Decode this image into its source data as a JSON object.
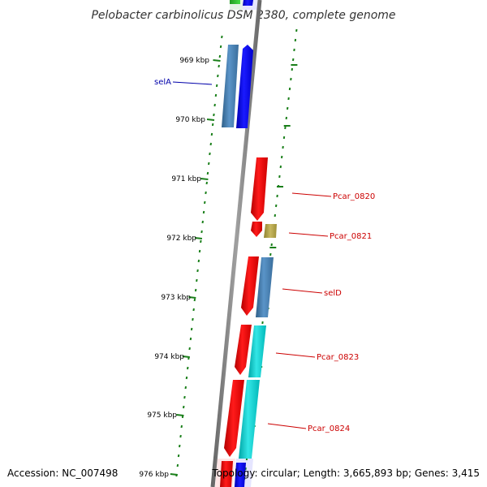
{
  "title": "Pelobacter carbinolicus DSM 2380, complete genome",
  "footer": {
    "accession": "Accession: NC_007498",
    "topology": "Topology: circular; Length: 3,665,893 bp; Genes: 3,415"
  },
  "colors": {
    "backbone": "#808080",
    "ruler_ticks": "#1a7f1a",
    "label_red": "#cc0000",
    "label_blue": "#0000aa",
    "gene_red": "#ff0000",
    "gene_blue": "#0000ff",
    "gene_steelblue": "#4682b4",
    "gene_cyan": "#00cccc",
    "gene_khaki": "#b5a642",
    "gene_green": "#33cc33"
  },
  "ruler": {
    "unit": "kbp",
    "ticks": [
      "969 kbp",
      "970 kbp",
      "971 kbp",
      "972 kbp",
      "973 kbp",
      "974 kbp",
      "975 kbp",
      "976 kbp"
    ]
  },
  "gene_labels": [
    {
      "text": "selA",
      "color": "blue"
    },
    {
      "text": "Pcar_0820",
      "color": "red"
    },
    {
      "text": "Pcar_0821",
      "color": "red"
    },
    {
      "text": "selD",
      "color": "red"
    },
    {
      "text": "Pcar_0823",
      "color": "red"
    },
    {
      "text": "Pcar_0824",
      "color": "red"
    }
  ]
}
